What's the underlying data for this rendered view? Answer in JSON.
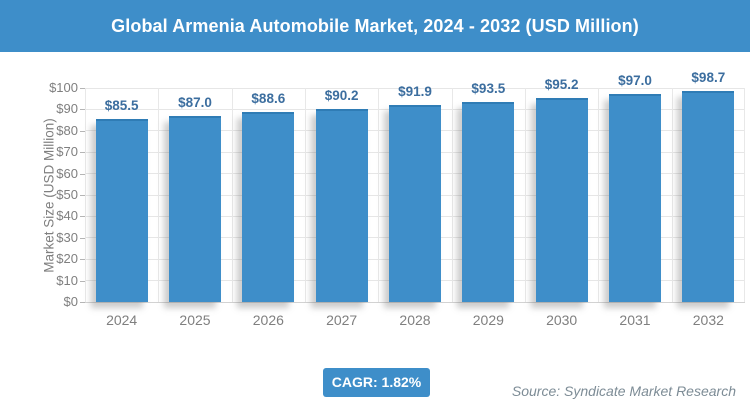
{
  "header": {
    "title": "Global Armenia Automobile Market, 2024 - 2032 (USD Million)"
  },
  "chart_data": {
    "type": "bar",
    "title": "Global Armenia Automobile Market, 2024 - 2032 (USD Million)",
    "categories": [
      "2024",
      "2025",
      "2026",
      "2027",
      "2028",
      "2029",
      "2030",
      "2031",
      "2032"
    ],
    "values": [
      85.5,
      87.0,
      88.6,
      90.2,
      91.9,
      93.5,
      95.2,
      97.0,
      98.7
    ],
    "data_labels": [
      "$85.5",
      "$87.0",
      "$88.6",
      "$90.2",
      "$91.9",
      "$93.5",
      "$95.2",
      "$97.0",
      "$98.7"
    ],
    "xlabel": "",
    "ylabel": "Market Size (USD Million)",
    "ylim": [
      0,
      100
    ],
    "ytick_step": 10,
    "ytick_labels": [
      "$0",
      "$10",
      "$20",
      "$30",
      "$40",
      "$50",
      "$60",
      "$70",
      "$80",
      "$90",
      "$100"
    ],
    "grid": "horizontal and vertical light gray",
    "legend_position": "none",
    "bar_color": "#3E8EC9",
    "bar_edge_color": "#2F7CB5",
    "data_label_color": "#3C6E9F"
  },
  "footer": {
    "cagr_label": "CAGR: 1.82%",
    "source": "Source: Syndicate Market Research"
  },
  "colors": {
    "accent_blue": "#3E8EC9",
    "axis_text": "#7F7F7F",
    "grid_line": "#E6E6E6",
    "source_text": "#7D8C96"
  }
}
